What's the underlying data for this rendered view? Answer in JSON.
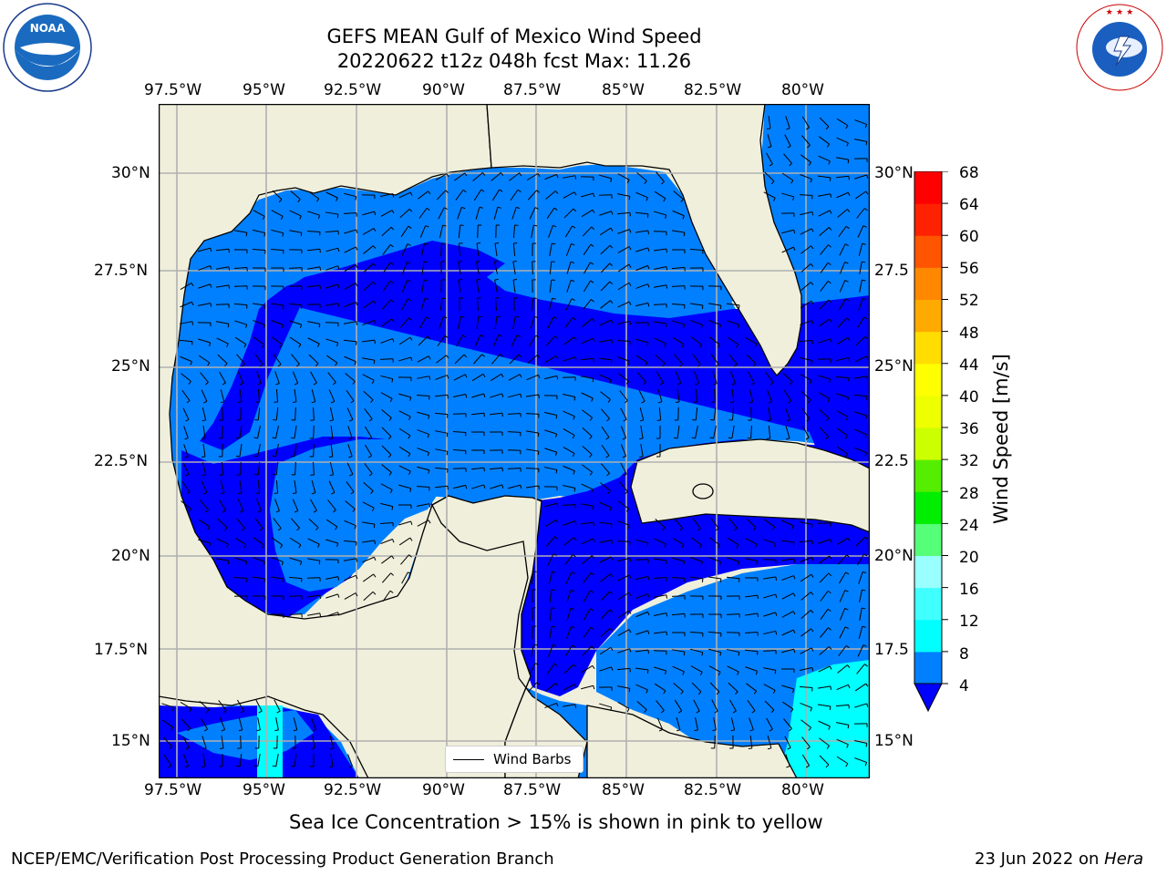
{
  "title": {
    "line1": "GEFS MEAN Gulf of Mexico Wind Speed",
    "line2": "20220622 t12z 048h fcst   Max: 11.26"
  },
  "logos": {
    "noaa_text": "NOAA",
    "noaa_ring_text": "NATIONAL OCEANIC AND ATMOSPHERIC ADMINISTRATION · U.S. DEPARTMENT OF COMMERCE",
    "nws_ring_text": "NATIONAL WEATHER SERVICE"
  },
  "axes": {
    "x_ticks": [
      "97.5°W",
      "95°W",
      "92.5°W",
      "90°W",
      "87.5°W",
      "85°W",
      "82.5°W",
      "80°W"
    ],
    "y_ticks_left": [
      "30°N",
      "27.5°N",
      "25°N",
      "22.5°N",
      "20°N",
      "17.5°N",
      "15°N"
    ],
    "y_ticks_right": [
      "30°N",
      "27.5",
      "25°N",
      "22.5",
      "20°N",
      "17.5",
      "15°N"
    ]
  },
  "colorbar": {
    "label": "Wind Speed [m/s]",
    "ticks": [
      "68",
      "64",
      "60",
      "56",
      "52",
      "48",
      "44",
      "40",
      "36",
      "32",
      "28",
      "24",
      "20",
      "16",
      "12",
      "8",
      "4"
    ],
    "colors": [
      "#0000ff",
      "#0080ff",
      "#00ffff",
      "#40ffff",
      "#99ffff",
      "#55ff77",
      "#00ee00",
      "#55ee00",
      "#ccff00",
      "#eeff00",
      "#ffff00",
      "#ffdd00",
      "#ffaa00",
      "#ff8800",
      "#ff5500",
      "#ff2200",
      "#ff0000"
    ]
  },
  "legend": {
    "label": "Wind Barbs"
  },
  "note": "Sea Ice Concentration > 15% is shown in pink to yellow",
  "footer": {
    "left": "NCEP/EMC/Verification Post Processing Product Generation Branch",
    "right_prefix": "23 Jun 2022 on ",
    "right_host": "Hera"
  },
  "map_colors": {
    "land": "#efefdc",
    "speed_0_4": "#0000ff",
    "speed_4_8": "#0080ff",
    "speed_8_12": "#00ffff",
    "gridline": "#b0b0b0"
  }
}
